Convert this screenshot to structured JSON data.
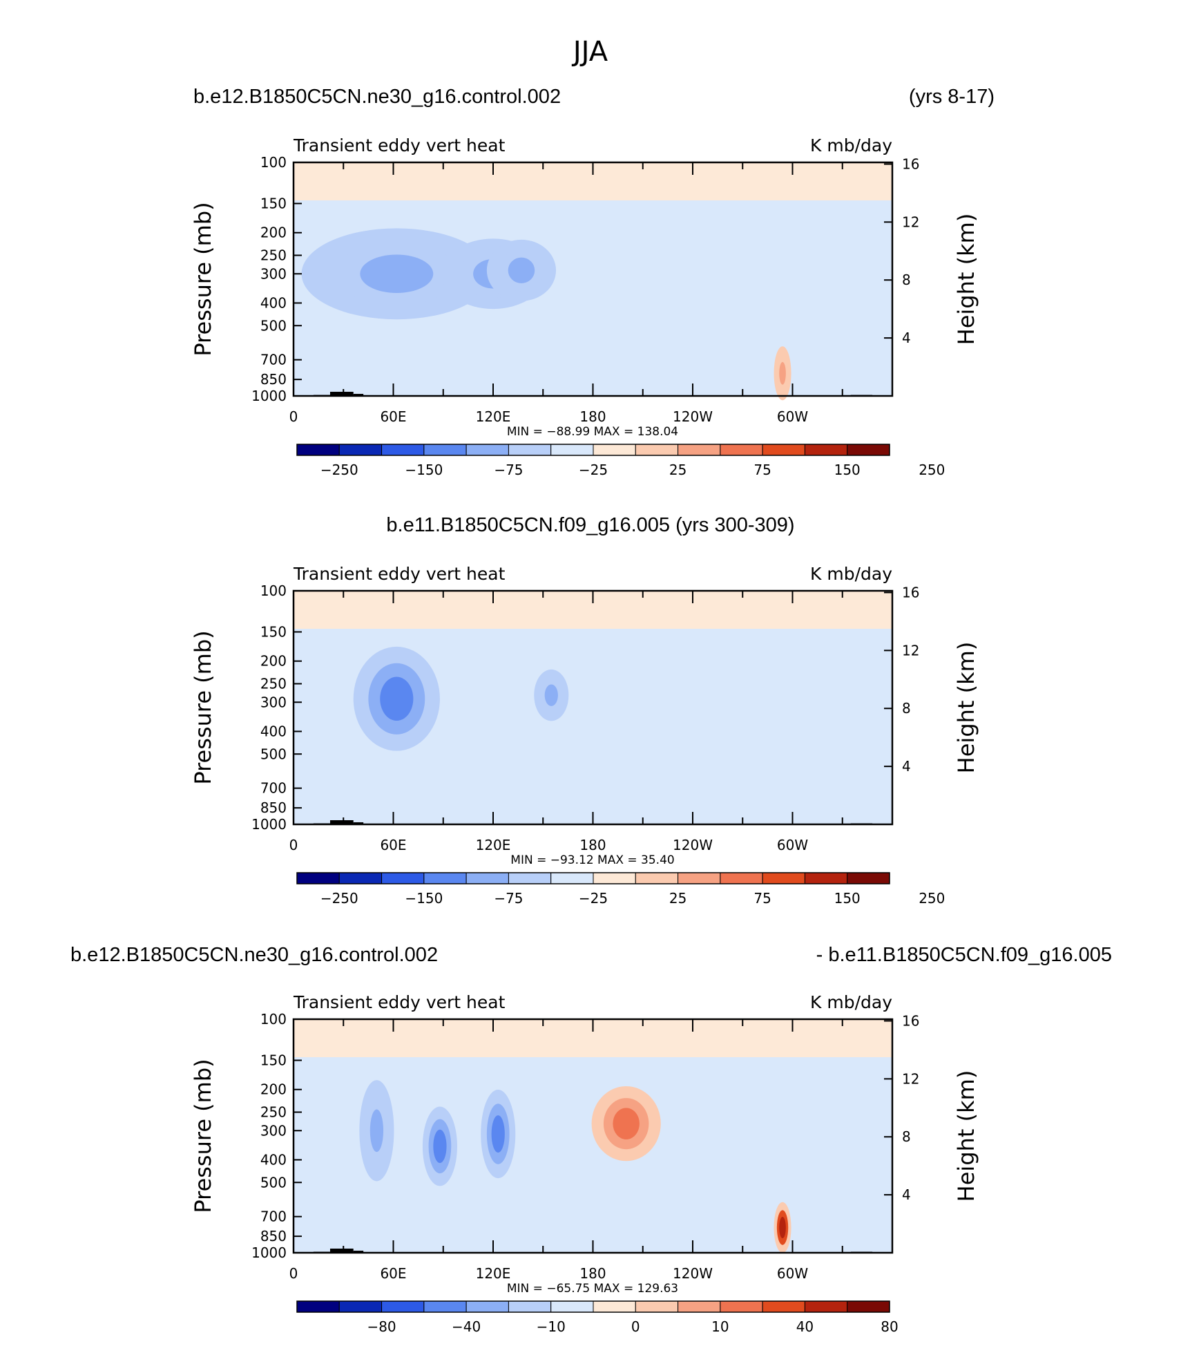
{
  "figure_title": "JJA",
  "colors": {
    "diverging": [
      "#00007f",
      "#0a28b4",
      "#2d5ae6",
      "#5a87f0",
      "#8caff5",
      "#b8cff8",
      "#d9e8fb",
      "#fde9d7",
      "#fbcbb0",
      "#f6a283",
      "#ef7350",
      "#e14b1e",
      "#b4230e",
      "#7a0a05"
    ]
  },
  "chart_data": [
    {
      "type": "heatmap",
      "left_title": "b.e12.B1850C5CN.ne30_g16.control.002",
      "right_title": "(yrs 8-17)",
      "label_left": "Transient eddy vert heat",
      "label_right": "K mb/day",
      "ylabel": "Pressure (mb)",
      "ylabel_right": "Height (km)",
      "yticks": [
        "100",
        "150",
        "200",
        "250",
        "300",
        "400",
        "500",
        "700",
        "850",
        "1000"
      ],
      "yticks_right": [
        "16",
        "12",
        "8",
        "4"
      ],
      "xticks": [
        "0",
        "60E",
        "120E",
        "180",
        "120W",
        "60W"
      ],
      "min_max_text": "MIN = −88.99   MAX = 138.04",
      "colorbar_labels": [
        "−250",
        "−150",
        "−75",
        "−25",
        "25",
        "75",
        "150",
        "250"
      ],
      "features": [
        {
          "lon": 62,
          "p": 300,
          "level": 4,
          "rx": 22,
          "rp": 80
        },
        {
          "lon": 120,
          "p": 300,
          "level": 4,
          "rx": 12,
          "rp": 60
        },
        {
          "lon": 137,
          "p": 290,
          "level": 4,
          "rx": 8,
          "rp": 50
        },
        {
          "lon": 294,
          "p": 800,
          "level": 9,
          "rx": 2,
          "rp": 120
        }
      ]
    },
    {
      "type": "heatmap",
      "title": "b.e11.B1850C5CN.f09_g16.005 (yrs 300-309)",
      "label_left": "Transient eddy vert heat",
      "label_right": "K mb/day",
      "ylabel": "Pressure (mb)",
      "ylabel_right": "Height (km)",
      "yticks": [
        "100",
        "150",
        "200",
        "250",
        "300",
        "400",
        "500",
        "700",
        "850",
        "1000"
      ],
      "yticks_right": [
        "16",
        "12",
        "8",
        "4"
      ],
      "xticks": [
        "0",
        "60E",
        "120E",
        "180",
        "120W",
        "60W"
      ],
      "min_max_text": "MIN = −93.12   MAX =   35.40",
      "colorbar_labels": [
        "−250",
        "−150",
        "−75",
        "−25",
        "25",
        "75",
        "150",
        "250"
      ],
      "features": [
        {
          "lon": 62,
          "p": 290,
          "level": 3,
          "rx": 10,
          "rp": 90
        },
        {
          "lon": 155,
          "p": 280,
          "level": 4,
          "rx": 4,
          "rp": 40
        }
      ]
    },
    {
      "type": "heatmap",
      "left_title": "b.e12.B1850C5CN.ne30_g16.control.002",
      "right_title": "- b.e11.B1850C5CN.f09_g16.005",
      "label_left": "Transient eddy vert heat",
      "label_right": "K mb/day",
      "ylabel": "Pressure (mb)",
      "ylabel_right": "Height (km)",
      "yticks": [
        "100",
        "150",
        "200",
        "250",
        "300",
        "400",
        "500",
        "700",
        "850",
        "1000"
      ],
      "yticks_right": [
        "16",
        "12",
        "8",
        "4"
      ],
      "xticks": [
        "0",
        "60E",
        "120E",
        "180",
        "120W",
        "60W"
      ],
      "min_max_text": "MIN = −65.75   MAX = 129.63",
      "colorbar_labels": [
        "−80",
        "−40",
        "−10",
        "0",
        "10",
        "40",
        "80"
      ],
      "features": [
        {
          "lon": 50,
          "p": 300,
          "level": 4,
          "rx": 4,
          "rp": 90
        },
        {
          "lon": 88,
          "p": 350,
          "level": 3,
          "rx": 4,
          "rp": 80
        },
        {
          "lon": 123,
          "p": 310,
          "level": 3,
          "rx": 4,
          "rp": 80
        },
        {
          "lon": 200,
          "p": 280,
          "level": 10,
          "rx": 8,
          "rp": 60
        },
        {
          "lon": 294,
          "p": 780,
          "level": 12,
          "rx": 2,
          "rp": 110
        }
      ]
    }
  ]
}
